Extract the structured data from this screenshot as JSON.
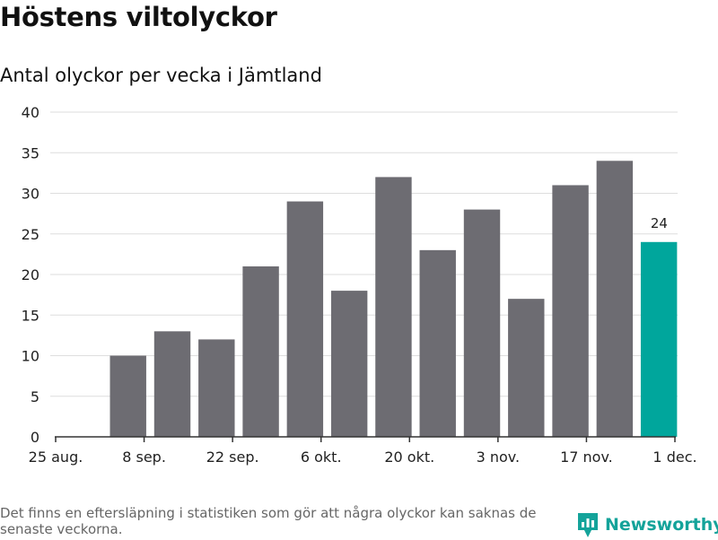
{
  "title": "Höstens viltolyckor",
  "subtitle": "Antal olyckor per vecka i Jämtland",
  "footnote": "Det finns en eftersläpning i statistiken som gör att några olyckor kan saknas de senaste veckorna.",
  "brand": {
    "name": "Newsworthy",
    "icon": "newsworthy-logo-icon",
    "color": "#14a39a"
  },
  "colors": {
    "bar": "#6d6c72",
    "highlight": "#00a69c",
    "grid": "#dedede",
    "axis": "#333333"
  },
  "chart_data": {
    "type": "bar",
    "x_unit": "week starting",
    "x": [
      "2019-09-02",
      "2019-09-09",
      "2019-09-16",
      "2019-09-23",
      "2019-09-30",
      "2019-10-07",
      "2019-10-14",
      "2019-10-21",
      "2019-10-28",
      "2019-11-04",
      "2019-11-11",
      "2019-11-18",
      "2019-11-25"
    ],
    "values": [
      10,
      13,
      12,
      21,
      29,
      18,
      32,
      23,
      28,
      17,
      31,
      34,
      24
    ],
    "highlight_index": 12,
    "data_labels": [
      {
        "index": 12,
        "text": "24"
      }
    ],
    "xlim": [
      "2019-08-25",
      "2019-12-01"
    ],
    "x_ticks": [
      {
        "date": "2019-08-25",
        "label": "25 aug."
      },
      {
        "date": "2019-09-08",
        "label": "8 sep."
      },
      {
        "date": "2019-09-22",
        "label": "22 sep."
      },
      {
        "date": "2019-10-06",
        "label": "6 okt."
      },
      {
        "date": "2019-10-20",
        "label": "20 okt."
      },
      {
        "date": "2019-11-03",
        "label": "3 nov."
      },
      {
        "date": "2019-11-17",
        "label": "17 nov."
      },
      {
        "date": "2019-12-01",
        "label": "1 dec."
      }
    ],
    "ylim": [
      0,
      40
    ],
    "y_ticks": [
      0,
      5,
      10,
      15,
      20,
      25,
      30,
      35,
      40
    ],
    "grid": true,
    "legend": "none"
  }
}
